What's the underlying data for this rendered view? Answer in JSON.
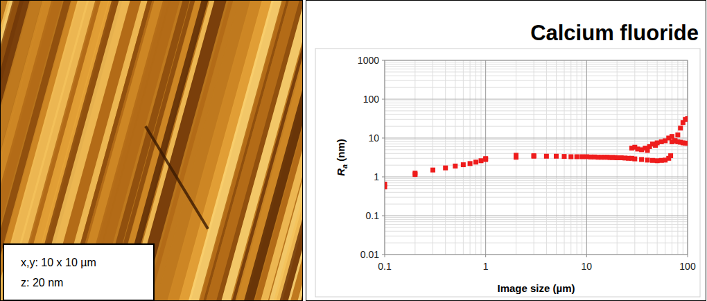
{
  "chart_data": {
    "type": "scatter",
    "title": "Calcium fluoride",
    "x_label": "Image size (µm)",
    "y_label": "Ra (nm)",
    "log": true,
    "grid": true,
    "marker": "square",
    "color": "#ee1c1c",
    "xlim": [
      0.1,
      100
    ],
    "xticks": [
      0.1,
      1,
      10,
      100
    ],
    "ylim": [
      0.01,
      1000
    ],
    "yticks": [
      0.01,
      0.1,
      1,
      10,
      100,
      1000
    ],
    "x": [
      0.1,
      0.1,
      0.2,
      0.2,
      0.3,
      0.4,
      0.5,
      0.6,
      0.7,
      0.8,
      0.9,
      1,
      1,
      2,
      2,
      3,
      3,
      4,
      5,
      6,
      7,
      8,
      9,
      10,
      11,
      12,
      13,
      14,
      15,
      16,
      17,
      18,
      19,
      20,
      22,
      24,
      26,
      28,
      30,
      28,
      30,
      32,
      35,
      38,
      40,
      42,
      45,
      48,
      50,
      55,
      60,
      65,
      70,
      75,
      80,
      85,
      90,
      95,
      100,
      35,
      40,
      45,
      50,
      55,
      60,
      65,
      68,
      70,
      75,
      80,
      85,
      90,
      95,
      100
    ],
    "values": [
      0.55,
      0.65,
      1.15,
      1.25,
      1.5,
      1.7,
      1.9,
      2.05,
      2.2,
      2.4,
      2.6,
      2.8,
      2.95,
      3.2,
      3.6,
      3.5,
      3.4,
      3.4,
      3.4,
      3.35,
      3.3,
      3.3,
      3.3,
      3.3,
      3.25,
      3.25,
      3.2,
      3.2,
      3.2,
      3.2,
      3.15,
      3.15,
      3.15,
      3.1,
      3.1,
      3.05,
      3.0,
      3.0,
      2.9,
      5.5,
      5.8,
      5.2,
      5.0,
      5.5,
      4.8,
      6.0,
      7.0,
      6.5,
      7.5,
      8.0,
      8.5,
      10,
      11,
      8.5,
      12,
      18,
      25,
      30,
      32,
      2.8,
      2.7,
      2.65,
      2.6,
      2.65,
      2.7,
      3.0,
      3.5,
      8.0,
      8.5,
      8.0,
      7.8,
      7.5,
      7.4,
      7.3
    ]
  },
  "image_panel": {
    "labels": [
      "x,y: 10 x 10 µm",
      "z: 20 nm"
    ]
  }
}
